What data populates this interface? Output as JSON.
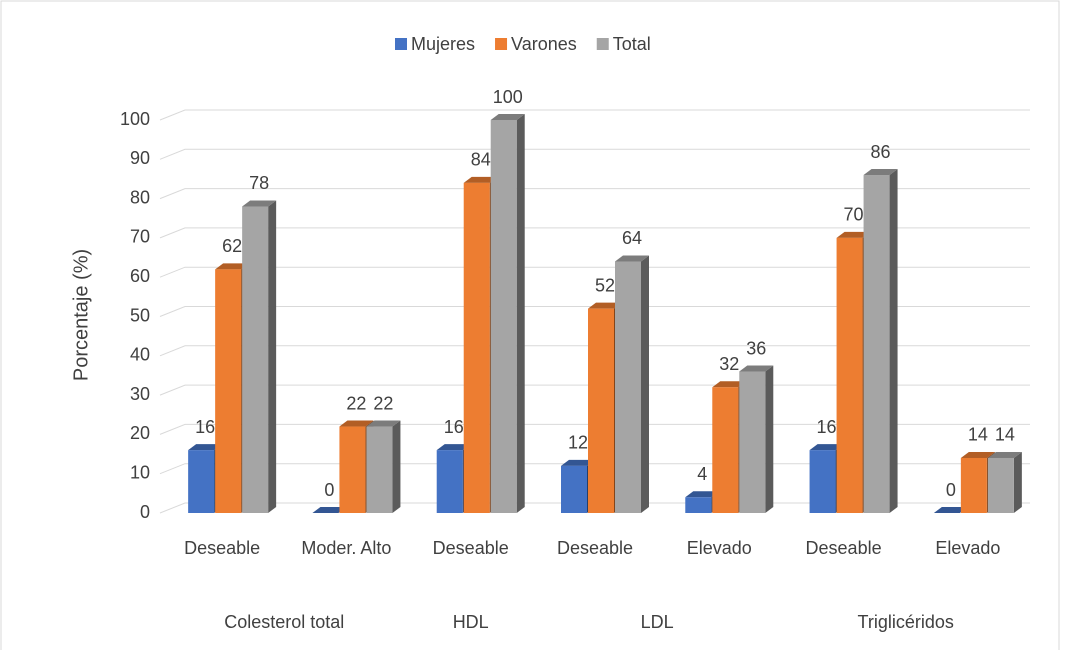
{
  "chart_data": {
    "type": "bar3d",
    "y_axis_label": "Porcentaje (%)",
    "categories": [
      "Deseable",
      "Moder. Alto",
      "Deseable",
      "Deseable",
      "Elevado",
      "Deseable",
      "Elevado"
    ],
    "groups": [
      "Colesterol total",
      "Colesterol total",
      "HDL",
      "LDL",
      "LDL",
      "Triglicéridos",
      "Triglicéridos"
    ],
    "series": [
      {
        "name": "Mujeres",
        "color": "#4472c4",
        "values": [
          16,
          0,
          16,
          12,
          4,
          16,
          0
        ]
      },
      {
        "name": "Varones",
        "color": "#ed7d31",
        "values": [
          62,
          22,
          84,
          52,
          32,
          70,
          14
        ]
      },
      {
        "name": "Total",
        "color": "#a5a5a5",
        "values": [
          78,
          22,
          100,
          64,
          36,
          86,
          14
        ]
      }
    ],
    "ylim": [
      0,
      100
    ],
    "yticks": [
      0,
      10,
      20,
      30,
      40,
      50,
      60,
      70,
      80,
      90,
      100
    ],
    "grid": true,
    "legend": "top"
  }
}
